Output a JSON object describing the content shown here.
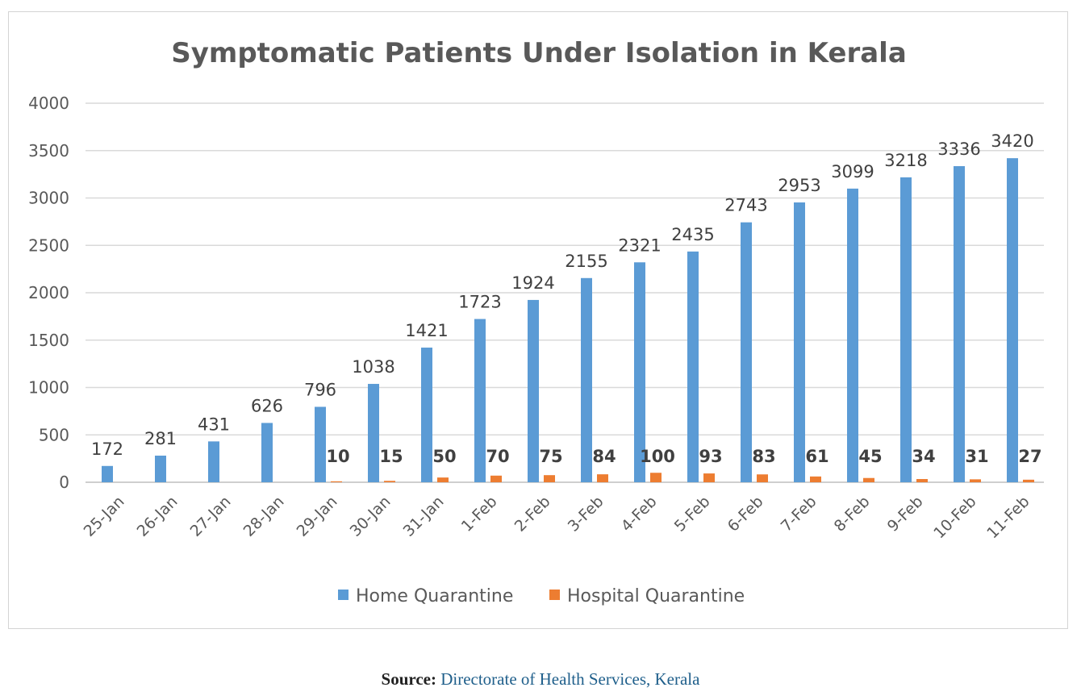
{
  "chart_data": {
    "type": "bar",
    "title": "Symptomatic Patients Under Isolation in Kerala",
    "xlabel": "",
    "ylabel": "",
    "ylim": [
      0,
      4000
    ],
    "yticks": [
      "0",
      "500",
      "1000",
      "1500",
      "2000",
      "2500",
      "3000",
      "3500",
      "4000"
    ],
    "grid": true,
    "legend_position": "bottom",
    "categories": [
      "25-Jan",
      "26-Jan",
      "27-Jan",
      "28-Jan",
      "29-Jan",
      "30-Jan",
      "31-Jan",
      "1-Feb",
      "2-Feb",
      "3-Feb",
      "4-Feb",
      "5-Feb",
      "6-Feb",
      "7-Feb",
      "8-Feb",
      "9-Feb",
      "10-Feb",
      "11-Feb"
    ],
    "series": [
      {
        "name": "Home Quarantine",
        "color": "#5b9bd5",
        "values": [
          172,
          281,
          431,
          626,
          796,
          1038,
          1421,
          1723,
          1924,
          2155,
          2321,
          2435,
          2743,
          2953,
          3099,
          3218,
          3336,
          3420
        ],
        "labels": [
          "172",
          "281",
          "431",
          "626",
          "796",
          "1038",
          "1421",
          "1723",
          "1924",
          "2155",
          "2321",
          "2435",
          "2743",
          "2953",
          "3099",
          "3218",
          "3336",
          "3420"
        ]
      },
      {
        "name": "Hospital Quarantine",
        "color": "#ed7d31",
        "values": [
          null,
          null,
          null,
          null,
          10,
          15,
          50,
          70,
          75,
          84,
          100,
          93,
          83,
          61,
          45,
          34,
          31,
          27
        ],
        "labels": [
          null,
          null,
          null,
          null,
          "10",
          "15",
          "50",
          "70",
          "75",
          "84",
          "100",
          "93",
          "83",
          "61",
          "45",
          "34",
          "31",
          "27"
        ]
      }
    ]
  },
  "source": {
    "label": "Source:",
    "text": "Directorate of Health Services, Kerala"
  }
}
